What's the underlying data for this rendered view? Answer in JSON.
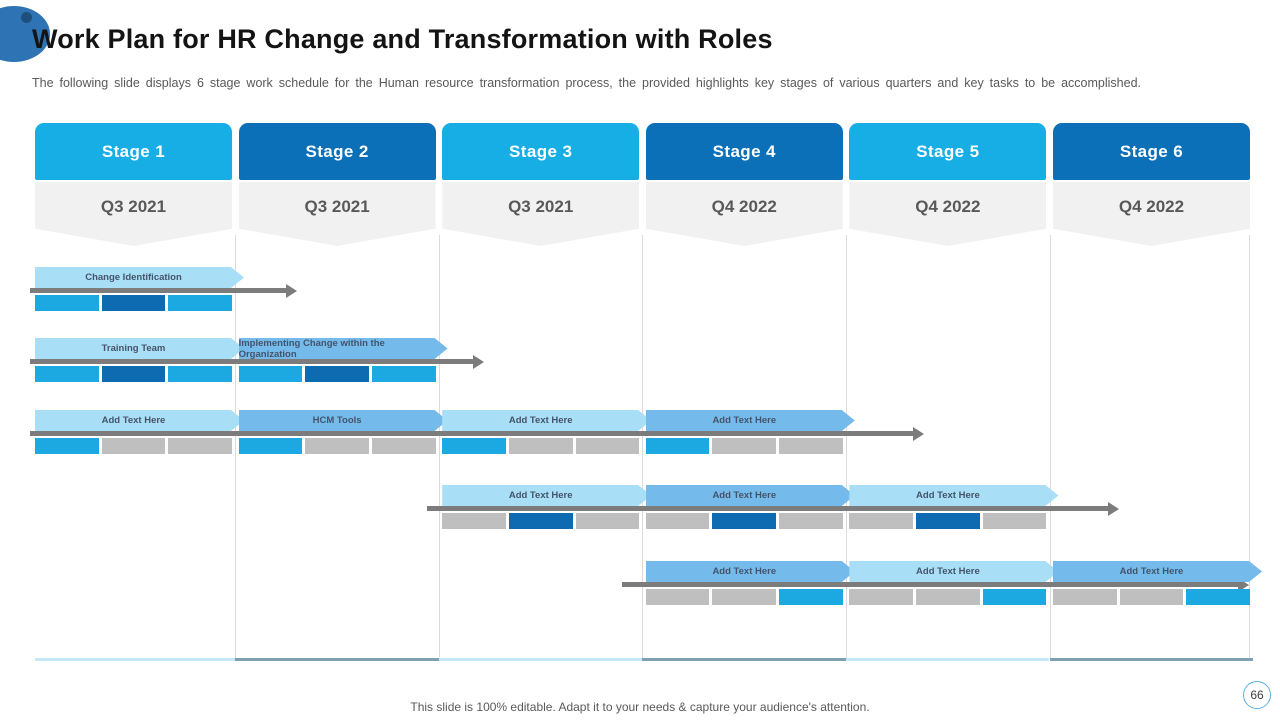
{
  "slide": {
    "title": "Work Plan for HR Change and Transformation with Roles",
    "subtitle": "The following slide displays 6 stage work schedule for the Human resource transformation process, the provided highlights key stages of various quarters and key tasks to be accomplished.",
    "footer": "This slide is 100% editable. Adapt it to your needs & capture your audience's attention.",
    "page_number": "66"
  },
  "colors": {
    "stage_light": "#17AEE6",
    "stage_dark": "#0B70B7",
    "quarter_bg": "#F1F1F2",
    "arrow_light": "#A8DFF7",
    "arrow_medium": "#74BBEC",
    "bar_blue": "#1CA9E2",
    "bar_dark": "#0E6BB2",
    "bar_gray": "#BFBFBF",
    "timeline_gray": "#7C7C7C",
    "baseline_light": "#C5E8F6",
    "baseline_steel": "#7EA0B5"
  },
  "stages": [
    {
      "label": "Stage 1",
      "quarter": "Q3 2021",
      "tone": "light"
    },
    {
      "label": "Stage 2",
      "quarter": "Q3 2021",
      "tone": "dark"
    },
    {
      "label": "Stage 3",
      "quarter": "Q3 2021",
      "tone": "light"
    },
    {
      "label": "Stage 4",
      "quarter": "Q4 2022",
      "tone": "dark"
    },
    {
      "label": "Stage 5",
      "quarter": "Q4 2022",
      "tone": "light"
    },
    {
      "label": "Stage 6",
      "quarter": "Q4 2022",
      "tone": "dark"
    }
  ],
  "gantt": {
    "rows": [
      {
        "arrow_span": {
          "start": 0,
          "end": 1.28
        },
        "tasks": [
          {
            "col": 0,
            "label": "Change Identification",
            "tone": "light",
            "segments": [
              "blue",
              "dark",
              "blue"
            ]
          }
        ]
      },
      {
        "arrow_span": {
          "start": 0,
          "end": 2.2
        },
        "tasks": [
          {
            "col": 0,
            "label": "Training Team",
            "tone": "light",
            "segments": [
              "blue",
              "dark",
              "blue"
            ]
          },
          {
            "col": 1,
            "label": "Implementing Change within the Organization",
            "tone": "medium",
            "segments": [
              "blue",
              "dark",
              "blue"
            ]
          }
        ]
      },
      {
        "arrow_span": {
          "start": 0,
          "end": 4.36
        },
        "tasks": [
          {
            "col": 0,
            "label": "Add Text Here",
            "tone": "light",
            "segments": [
              "blue",
              "gray",
              "gray"
            ]
          },
          {
            "col": 1,
            "label": "HCM Tools",
            "tone": "medium",
            "segments": [
              "blue",
              "gray",
              "gray"
            ]
          },
          {
            "col": 2,
            "label": "Add Text Here",
            "tone": "light",
            "segments": [
              "blue",
              "gray",
              "gray"
            ]
          },
          {
            "col": 3,
            "label": "Add Text Here",
            "tone": "medium",
            "segments": [
              "blue",
              "gray",
              "gray"
            ]
          }
        ]
      },
      {
        "arrow_span": {
          "start": 1.95,
          "end": 5.32
        },
        "tasks": [
          {
            "col": 2,
            "label": "Add Text Here",
            "tone": "light",
            "segments": [
              "gray",
              "dark",
              "gray"
            ]
          },
          {
            "col": 3,
            "label": "Add Text Here",
            "tone": "medium",
            "segments": [
              "gray",
              "dark",
              "gray"
            ]
          },
          {
            "col": 4,
            "label": "Add Text Here",
            "tone": "light",
            "segments": [
              "gray",
              "dark",
              "gray"
            ]
          }
        ]
      },
      {
        "arrow_span": {
          "start": 2.91,
          "end": 5.96
        },
        "tasks": [
          {
            "col": 3,
            "label": "Add Text Here",
            "tone": "medium",
            "segments": [
              "gray",
              "gray",
              "blue"
            ]
          },
          {
            "col": 4,
            "label": "Add Text Here",
            "tone": "light",
            "segments": [
              "gray",
              "gray",
              "blue"
            ]
          },
          {
            "col": 5,
            "label": "Add Text Here",
            "tone": "medium",
            "segments": [
              "gray",
              "gray",
              "blue"
            ]
          }
        ]
      }
    ]
  }
}
